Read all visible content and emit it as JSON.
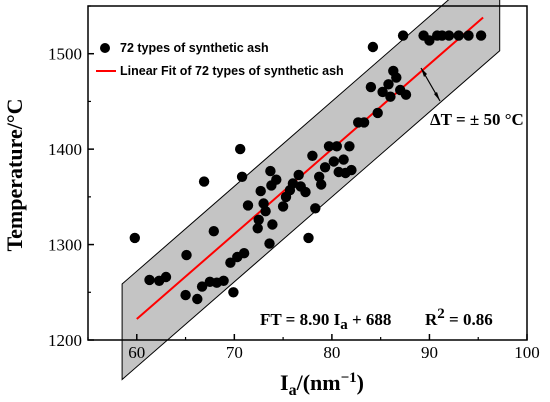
{
  "chart_data": {
    "type": "scatter",
    "xlabel": "I",
    "xlabel_sub": "a",
    "xlabel_unit": "/(nm",
    "xlabel_unit_sup": "−1",
    "xlabel_close": ")",
    "ylabel": "Temperature/°C",
    "xlim": [
      55,
      100
    ],
    "ylim": [
      1200,
      1550
    ],
    "x_ticks": [
      60,
      70,
      80,
      90,
      100
    ],
    "y_ticks": [
      1200,
      1300,
      1400,
      1500
    ],
    "legend_position": "top-left",
    "legend": {
      "points": "72 types of synthetic ash",
      "fit": "Linear Fit of 72 types of synthetic ash"
    },
    "colors": {
      "points": "#000000",
      "fit": "#ff0000",
      "band": "#c4c4c4"
    },
    "fit": {
      "slope": 8.9,
      "intercept": 688,
      "x_range": [
        60,
        95.5
      ]
    },
    "band_halfwidth": 50,
    "annotations": {
      "delta_t": "ΔT = ± 50 °C",
      "equation_prefix": "FT = 8.90 I",
      "equation_sub": "a",
      "equation_suffix": " + 688",
      "r2_prefix": "R",
      "r2_sup": "2",
      "r2_suffix": " = 0.86"
    },
    "points": [
      [
        59.8,
        1307
      ],
      [
        61.3,
        1263
      ],
      [
        62.3,
        1262
      ],
      [
        63.0,
        1266
      ],
      [
        65.0,
        1247
      ],
      [
        65.1,
        1289
      ],
      [
        66.2,
        1243
      ],
      [
        66.7,
        1256
      ],
      [
        66.9,
        1366
      ],
      [
        67.5,
        1261
      ],
      [
        67.9,
        1314
      ],
      [
        68.2,
        1260
      ],
      [
        68.9,
        1262
      ],
      [
        69.6,
        1281
      ],
      [
        69.9,
        1250
      ],
      [
        70.3,
        1287
      ],
      [
        70.6,
        1400
      ],
      [
        70.8,
        1371
      ],
      [
        71.0,
        1291
      ],
      [
        71.4,
        1341
      ],
      [
        72.4,
        1317
      ],
      [
        72.5,
        1326
      ],
      [
        72.7,
        1356
      ],
      [
        73.0,
        1343
      ],
      [
        73.2,
        1335
      ],
      [
        73.6,
        1301
      ],
      [
        73.7,
        1377
      ],
      [
        73.8,
        1362
      ],
      [
        73.9,
        1321
      ],
      [
        74.3,
        1368
      ],
      [
        75.0,
        1340
      ],
      [
        75.3,
        1350
      ],
      [
        75.7,
        1357
      ],
      [
        76.0,
        1364
      ],
      [
        76.6,
        1373
      ],
      [
        76.8,
        1361
      ],
      [
        77.3,
        1355
      ],
      [
        77.6,
        1307
      ],
      [
        78.0,
        1393
      ],
      [
        78.3,
        1338
      ],
      [
        78.7,
        1371
      ],
      [
        78.9,
        1363
      ],
      [
        79.3,
        1381
      ],
      [
        79.7,
        1403
      ],
      [
        80.2,
        1387
      ],
      [
        80.5,
        1403
      ],
      [
        80.7,
        1376
      ],
      [
        81.2,
        1389
      ],
      [
        81.4,
        1375
      ],
      [
        81.8,
        1403
      ],
      [
        82.0,
        1378
      ],
      [
        82.7,
        1428
      ],
      [
        83.3,
        1428
      ],
      [
        84.0,
        1465
      ],
      [
        84.2,
        1507
      ],
      [
        84.7,
        1438
      ],
      [
        85.2,
        1460
      ],
      [
        85.8,
        1468
      ],
      [
        86.0,
        1455
      ],
      [
        86.3,
        1482
      ],
      [
        86.6,
        1475
      ],
      [
        87.0,
        1462
      ],
      [
        87.3,
        1519
      ],
      [
        87.6,
        1457
      ],
      [
        89.4,
        1519
      ],
      [
        90.0,
        1514
      ],
      [
        90.8,
        1519
      ],
      [
        91.3,
        1519
      ],
      [
        92.0,
        1519
      ],
      [
        93.0,
        1519
      ],
      [
        94.0,
        1519
      ],
      [
        95.3,
        1519
      ]
    ]
  }
}
